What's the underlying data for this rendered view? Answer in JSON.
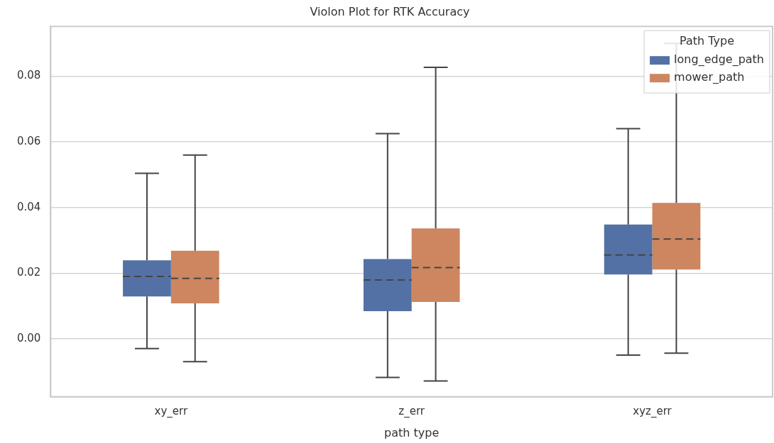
{
  "chart_data": {
    "type": "box",
    "title": "Violon Plot for RTK Accuracy",
    "xlabel": "path type",
    "legend_title": "Path Type",
    "legend": "top right",
    "grid": "y",
    "categories": [
      "xy_err",
      "z_err",
      "xyz_err"
    ],
    "ylim": [
      -0.0177,
      0.0952
    ],
    "yticks": [
      {
        "value": 0,
        "label": "0.00"
      },
      0.02,
      0.04,
      0.06,
      0.08
    ],
    "series": [
      {
        "name": "long_edge_path",
        "color": "#5471a5",
        "boxes": [
          {
            "low": -0.003,
            "q1": 0.0129,
            "median": 0.019,
            "q3": 0.0239,
            "high": 0.0504
          },
          {
            "low": -0.0118,
            "q1": 0.0084,
            "median": 0.0179,
            "q3": 0.0243,
            "high": 0.0625
          },
          {
            "low": -0.005,
            "q1": 0.0196,
            "median": 0.0255,
            "q3": 0.0348,
            "high": 0.064
          }
        ]
      },
      {
        "name": "mower_path",
        "color": "#cd8660",
        "boxes": [
          {
            "low": -0.007,
            "q1": 0.0108,
            "median": 0.0184,
            "q3": 0.0268,
            "high": 0.056
          },
          {
            "low": -0.0129,
            "q1": 0.0112,
            "median": 0.0217,
            "q3": 0.0336,
            "high": 0.0827
          },
          {
            "low": -0.0044,
            "q1": 0.0211,
            "median": 0.0304,
            "q3": 0.0414,
            "high": 0.09
          }
        ]
      }
    ]
  }
}
